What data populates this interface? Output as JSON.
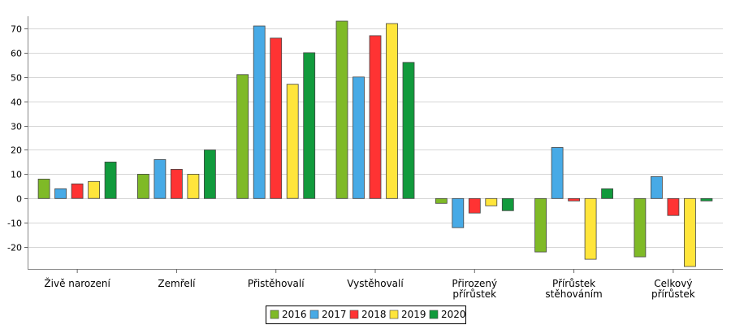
{
  "chart_data": {
    "type": "bar",
    "title": "",
    "xlabel": "",
    "ylabel": "",
    "ylim": [
      -29,
      75
    ],
    "yticks": [
      -20,
      -10,
      0,
      10,
      20,
      30,
      40,
      50,
      60,
      70
    ],
    "grid": "horizontal",
    "legend_position": "bottom",
    "categories": [
      [
        "Živě narození"
      ],
      [
        "Zemřelí"
      ],
      [
        "Přistěhovalí"
      ],
      [
        "Vystěhovalí"
      ],
      [
        "Přirozený",
        "přírůstek"
      ],
      [
        "Přírůstek",
        "stěhováním"
      ],
      [
        "Celkový",
        "přírůstek"
      ]
    ],
    "series": [
      {
        "name": "2016",
        "color": "#7fba27",
        "values": [
          8,
          10,
          51,
          73,
          -2,
          -22,
          -24
        ]
      },
      {
        "name": "2017",
        "color": "#47aae6",
        "values": [
          4,
          16,
          71,
          50,
          -12,
          21,
          9
        ]
      },
      {
        "name": "2018",
        "color": "#ff3333",
        "values": [
          6,
          12,
          66,
          67,
          -6,
          -1,
          -7
        ]
      },
      {
        "name": "2019",
        "color": "#ffe53b",
        "values": [
          7,
          10,
          47,
          72,
          -3,
          -25,
          -28
        ]
      },
      {
        "name": "2020",
        "color": "#119a3c",
        "values": [
          15,
          20,
          60,
          56,
          -5,
          4,
          -1
        ]
      }
    ]
  }
}
